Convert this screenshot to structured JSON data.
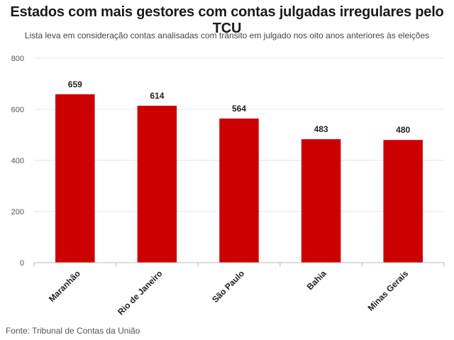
{
  "title": "Estados com mais gestores com contas julgadas irregulares pelo TCU",
  "subtitle": "Lista leva em consideração contas analisadas com trânsito em julgado nos oito anos anteriores às eleições",
  "source": "Fonte: Tribunal de Contas da União",
  "colors": {
    "bar": "#cc0000",
    "grid": "#e6e6e6",
    "axis": "#bbbbbb"
  },
  "chart_data": {
    "type": "bar",
    "categories": [
      "Maranhão",
      "Rio de Janeiro",
      "São Paulo",
      "Bahia",
      "Minas Gerais"
    ],
    "values": [
      659,
      614,
      564,
      483,
      480
    ],
    "data_labels": [
      "659",
      "614",
      "564",
      "483",
      "480"
    ],
    "ylim": [
      0,
      800
    ],
    "yticks": [
      0,
      200,
      400,
      600,
      800
    ],
    "ytick_labels": [
      "0",
      "200",
      "400",
      "600",
      "800"
    ],
    "grid": true,
    "legend": "none"
  }
}
